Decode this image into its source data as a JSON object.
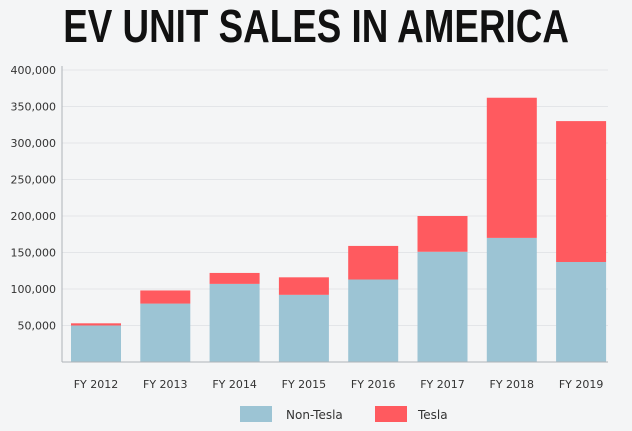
{
  "chart_data": {
    "type": "bar",
    "stacked": true,
    "title": "EV UNIT SALES IN AMERICA",
    "categories": [
      "FY 2012",
      "FY 2013",
      "FY 2014",
      "FY 2015",
      "FY 2016",
      "FY 2017",
      "FY 2018",
      "FY 2019"
    ],
    "series": [
      {
        "name": "Non-Tesla",
        "color": "#9cc4d4",
        "values": [
          50000,
          80000,
          107000,
          92000,
          113000,
          151000,
          170000,
          137000
        ]
      },
      {
        "name": "Tesla",
        "color": "#ff5a5f",
        "values": [
          3000,
          18000,
          15000,
          24000,
          46000,
          49000,
          192000,
          193000
        ]
      }
    ],
    "yticks": [
      50000,
      100000,
      150000,
      200000,
      250000,
      300000,
      350000,
      400000
    ],
    "ytick_labels": [
      "50,000",
      "100,000",
      "150,000",
      "200,000",
      "250,000",
      "300,000",
      "350,000",
      "400,000"
    ],
    "ylim": [
      0,
      400000
    ],
    "xlabel": "",
    "ylabel": "",
    "grid": true,
    "legend_position": "bottom-center"
  }
}
